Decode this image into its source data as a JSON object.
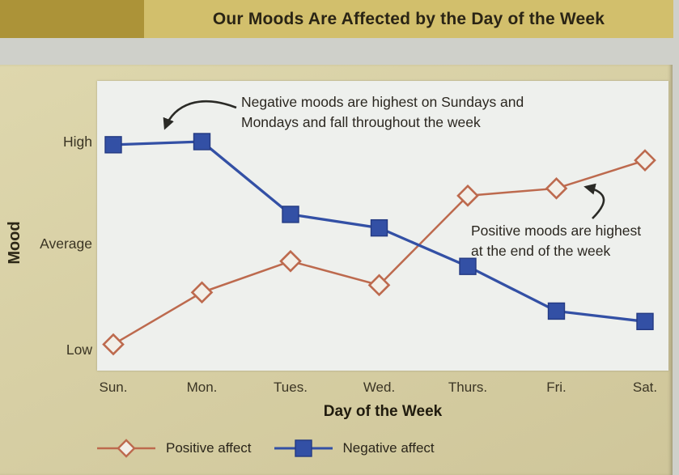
{
  "banner": {
    "title": "Our Moods Are Affected by the Day of the Week"
  },
  "chart_data": {
    "type": "line",
    "title": "Our Moods Are Affected by the Day of the Week",
    "categories": [
      "Sun.",
      "Mon.",
      "Tues.",
      "Wed.",
      "Thurs.",
      "Fri.",
      "Sat."
    ],
    "xlabel": "Day of the Week",
    "ylabel": "Mood",
    "ytick_labels": [
      "High",
      "Average",
      "Low"
    ],
    "value_scale": {
      "Low": 1,
      "Average": 2,
      "High": 3
    },
    "ylim": [
      0.8,
      3.15
    ],
    "grid": false,
    "legend_position": "bottom",
    "series": [
      {
        "name": "Positive affect",
        "marker": "open-diamond",
        "color": "#bd6a4e",
        "values": [
          1.05,
          1.55,
          1.85,
          1.62,
          2.48,
          2.55,
          2.82
        ]
      },
      {
        "name": "Negative affect",
        "marker": "filled-square",
        "color": "#3350a5",
        "values": [
          2.97,
          3.0,
          2.3,
          2.17,
          1.8,
          1.37,
          1.27
        ]
      }
    ],
    "annotations": [
      {
        "id": "negative-note",
        "lines": [
          "Negative moods are highest on Sundays and",
          "Mondays and fall throughout the week"
        ]
      },
      {
        "id": "positive-note",
        "lines": [
          "Positive moods are highest",
          "at the end of the week"
        ]
      }
    ]
  },
  "colors": {
    "banner_block": "#ac9338",
    "banner_bg": "#d2bf6c",
    "card_bg": "#d6cea3",
    "plot_bg": "#eef0ed",
    "outer_bg": "#cfd0ca",
    "positive_accent": "#bd6a4e",
    "negative_accent": "#3350a5",
    "text": "#2b2720"
  }
}
